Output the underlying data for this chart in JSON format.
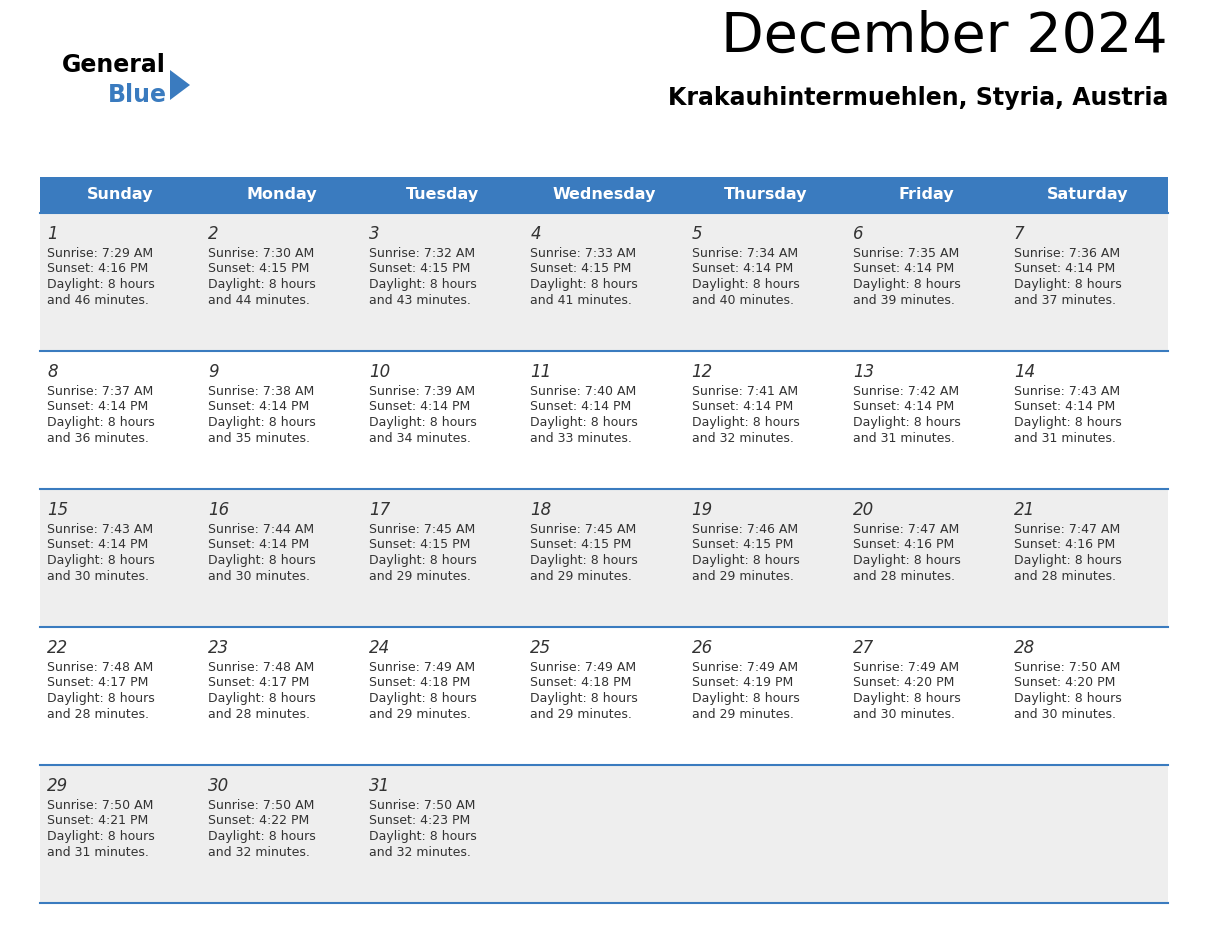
{
  "title": "December 2024",
  "subtitle": "Krakauhintermuehlen, Styria, Austria",
  "days_of_week": [
    "Sunday",
    "Monday",
    "Tuesday",
    "Wednesday",
    "Thursday",
    "Friday",
    "Saturday"
  ],
  "header_bg": "#3A7BBF",
  "header_text_color": "#FFFFFF",
  "row_bg_odd": "#EEEEEE",
  "row_bg_even": "#FFFFFF",
  "divider_color": "#3A7BBF",
  "text_color": "#333333",
  "cal_data": [
    [
      {
        "day": 1,
        "sunrise": "7:29 AM",
        "sunset": "4:16 PM",
        "daylight_hours": 8,
        "daylight_minutes": 46
      },
      {
        "day": 2,
        "sunrise": "7:30 AM",
        "sunset": "4:15 PM",
        "daylight_hours": 8,
        "daylight_minutes": 44
      },
      {
        "day": 3,
        "sunrise": "7:32 AM",
        "sunset": "4:15 PM",
        "daylight_hours": 8,
        "daylight_minutes": 43
      },
      {
        "day": 4,
        "sunrise": "7:33 AM",
        "sunset": "4:15 PM",
        "daylight_hours": 8,
        "daylight_minutes": 41
      },
      {
        "day": 5,
        "sunrise": "7:34 AM",
        "sunset": "4:14 PM",
        "daylight_hours": 8,
        "daylight_minutes": 40
      },
      {
        "day": 6,
        "sunrise": "7:35 AM",
        "sunset": "4:14 PM",
        "daylight_hours": 8,
        "daylight_minutes": 39
      },
      {
        "day": 7,
        "sunrise": "7:36 AM",
        "sunset": "4:14 PM",
        "daylight_hours": 8,
        "daylight_minutes": 37
      }
    ],
    [
      {
        "day": 8,
        "sunrise": "7:37 AM",
        "sunset": "4:14 PM",
        "daylight_hours": 8,
        "daylight_minutes": 36
      },
      {
        "day": 9,
        "sunrise": "7:38 AM",
        "sunset": "4:14 PM",
        "daylight_hours": 8,
        "daylight_minutes": 35
      },
      {
        "day": 10,
        "sunrise": "7:39 AM",
        "sunset": "4:14 PM",
        "daylight_hours": 8,
        "daylight_minutes": 34
      },
      {
        "day": 11,
        "sunrise": "7:40 AM",
        "sunset": "4:14 PM",
        "daylight_hours": 8,
        "daylight_minutes": 33
      },
      {
        "day": 12,
        "sunrise": "7:41 AM",
        "sunset": "4:14 PM",
        "daylight_hours": 8,
        "daylight_minutes": 32
      },
      {
        "day": 13,
        "sunrise": "7:42 AM",
        "sunset": "4:14 PM",
        "daylight_hours": 8,
        "daylight_minutes": 31
      },
      {
        "day": 14,
        "sunrise": "7:43 AM",
        "sunset": "4:14 PM",
        "daylight_hours": 8,
        "daylight_minutes": 31
      }
    ],
    [
      {
        "day": 15,
        "sunrise": "7:43 AM",
        "sunset": "4:14 PM",
        "daylight_hours": 8,
        "daylight_minutes": 30
      },
      {
        "day": 16,
        "sunrise": "7:44 AM",
        "sunset": "4:14 PM",
        "daylight_hours": 8,
        "daylight_minutes": 30
      },
      {
        "day": 17,
        "sunrise": "7:45 AM",
        "sunset": "4:15 PM",
        "daylight_hours": 8,
        "daylight_minutes": 29
      },
      {
        "day": 18,
        "sunrise": "7:45 AM",
        "sunset": "4:15 PM",
        "daylight_hours": 8,
        "daylight_minutes": 29
      },
      {
        "day": 19,
        "sunrise": "7:46 AM",
        "sunset": "4:15 PM",
        "daylight_hours": 8,
        "daylight_minutes": 29
      },
      {
        "day": 20,
        "sunrise": "7:47 AM",
        "sunset": "4:16 PM",
        "daylight_hours": 8,
        "daylight_minutes": 28
      },
      {
        "day": 21,
        "sunrise": "7:47 AM",
        "sunset": "4:16 PM",
        "daylight_hours": 8,
        "daylight_minutes": 28
      }
    ],
    [
      {
        "day": 22,
        "sunrise": "7:48 AM",
        "sunset": "4:17 PM",
        "daylight_hours": 8,
        "daylight_minutes": 28
      },
      {
        "day": 23,
        "sunrise": "7:48 AM",
        "sunset": "4:17 PM",
        "daylight_hours": 8,
        "daylight_minutes": 28
      },
      {
        "day": 24,
        "sunrise": "7:49 AM",
        "sunset": "4:18 PM",
        "daylight_hours": 8,
        "daylight_minutes": 29
      },
      {
        "day": 25,
        "sunrise": "7:49 AM",
        "sunset": "4:18 PM",
        "daylight_hours": 8,
        "daylight_minutes": 29
      },
      {
        "day": 26,
        "sunrise": "7:49 AM",
        "sunset": "4:19 PM",
        "daylight_hours": 8,
        "daylight_minutes": 29
      },
      {
        "day": 27,
        "sunrise": "7:49 AM",
        "sunset": "4:20 PM",
        "daylight_hours": 8,
        "daylight_minutes": 30
      },
      {
        "day": 28,
        "sunrise": "7:50 AM",
        "sunset": "4:20 PM",
        "daylight_hours": 8,
        "daylight_minutes": 30
      }
    ],
    [
      {
        "day": 29,
        "sunrise": "7:50 AM",
        "sunset": "4:21 PM",
        "daylight_hours": 8,
        "daylight_minutes": 31
      },
      {
        "day": 30,
        "sunrise": "7:50 AM",
        "sunset": "4:22 PM",
        "daylight_hours": 8,
        "daylight_minutes": 32
      },
      {
        "day": 31,
        "sunrise": "7:50 AM",
        "sunset": "4:23 PM",
        "daylight_hours": 8,
        "daylight_minutes": 32
      },
      null,
      null,
      null,
      null
    ]
  ],
  "logo_text1": "General",
  "logo_text2": "Blue",
  "logo_triangle_color": "#3A7BBF"
}
